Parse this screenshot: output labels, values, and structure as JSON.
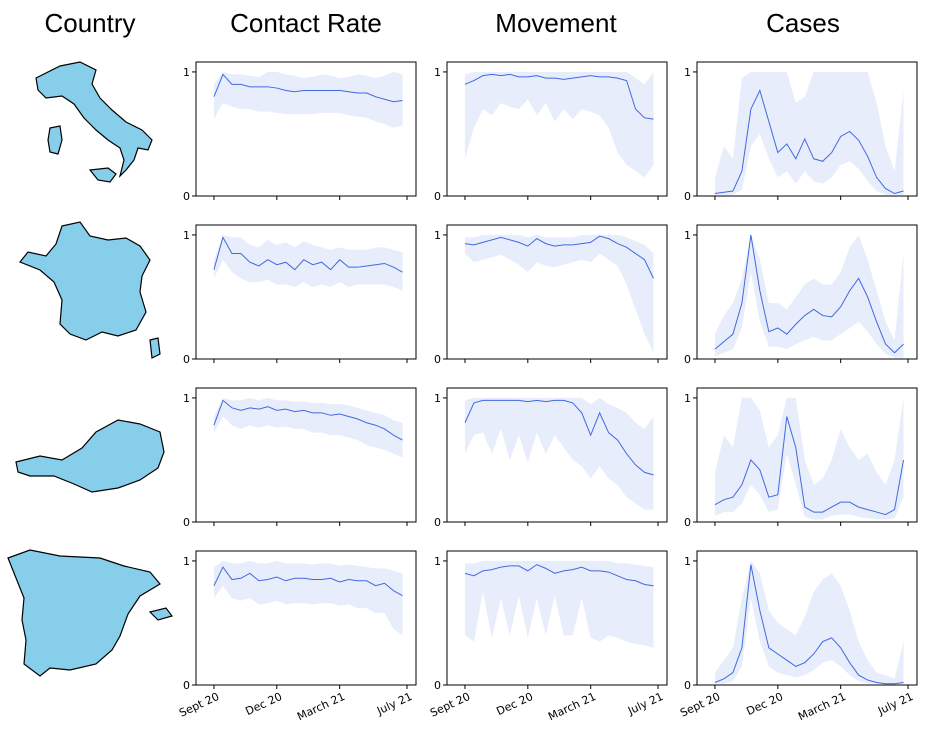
{
  "headers": [
    "Country",
    "Contact Rate",
    "Movement",
    "Cases"
  ],
  "chart_data": [
    {
      "type": "line",
      "x": [
        0,
        2,
        4,
        6,
        8,
        10,
        12,
        14,
        16,
        18,
        20,
        22,
        24,
        26,
        28,
        30,
        32,
        34,
        36,
        38,
        40,
        42
      ],
      "xlim": [
        -4,
        45
      ],
      "xticks": [
        0,
        14,
        28,
        43
      ],
      "ylim": [
        0,
        1.08
      ],
      "yticks": [
        0,
        1
      ],
      "color": "#4169e1",
      "band_color": "#e8edfb",
      "values": [
        0.8,
        0.98,
        0.9,
        0.9,
        0.88,
        0.88,
        0.88,
        0.87,
        0.85,
        0.84,
        0.85,
        0.85,
        0.85,
        0.85,
        0.85,
        0.84,
        0.83,
        0.83,
        0.8,
        0.78,
        0.76,
        0.77
      ],
      "lower": [
        0.62,
        0.75,
        0.72,
        0.7,
        0.7,
        0.68,
        0.68,
        0.67,
        0.66,
        0.66,
        0.66,
        0.66,
        0.67,
        0.67,
        0.67,
        0.65,
        0.64,
        0.63,
        0.6,
        0.58,
        0.55,
        0.57
      ],
      "upper": [
        0.9,
        1.0,
        0.98,
        0.98,
        0.97,
        0.96,
        1.0,
        1.0,
        0.98,
        0.97,
        0.95,
        0.96,
        0.98,
        0.97,
        0.95,
        0.96,
        0.98,
        0.97,
        0.95,
        0.97,
        1.0,
        0.98
      ]
    },
    {
      "type": "line",
      "x": [
        0,
        2,
        4,
        6,
        8,
        10,
        12,
        14,
        16,
        18,
        20,
        22,
        24,
        26,
        28,
        30,
        32,
        34,
        36,
        38,
        40,
        42
      ],
      "xlim": [
        -4,
        45
      ],
      "xticks": [
        0,
        14,
        28,
        43
      ],
      "ylim": [
        0,
        1.08
      ],
      "yticks": [
        0,
        1
      ],
      "color": "#4169e1",
      "band_color": "#e8edfb",
      "values": [
        0.9,
        0.93,
        0.97,
        0.98,
        0.97,
        0.98,
        0.96,
        0.96,
        0.97,
        0.95,
        0.95,
        0.94,
        0.95,
        0.96,
        0.97,
        0.96,
        0.96,
        0.95,
        0.93,
        0.7,
        0.63,
        0.62
      ],
      "lower": [
        0.3,
        0.55,
        0.7,
        0.65,
        0.75,
        0.72,
        0.7,
        0.78,
        0.65,
        0.75,
        0.6,
        0.7,
        0.62,
        0.7,
        0.68,
        0.65,
        0.55,
        0.35,
        0.25,
        0.2,
        0.15,
        0.25
      ],
      "upper": [
        0.98,
        1.0,
        1.0,
        1.0,
        1.0,
        1.0,
        1.0,
        1.0,
        1.0,
        1.0,
        1.0,
        1.0,
        1.0,
        1.0,
        1.0,
        1.0,
        1.0,
        1.0,
        1.0,
        0.95,
        0.9,
        1.0
      ]
    },
    {
      "type": "line",
      "x": [
        0,
        2,
        4,
        6,
        8,
        10,
        12,
        14,
        16,
        18,
        20,
        22,
        24,
        26,
        28,
        30,
        32,
        34,
        36,
        38,
        40,
        42
      ],
      "xlim": [
        -4,
        45
      ],
      "xticks": [
        0,
        14,
        28,
        43
      ],
      "ylim": [
        0,
        1.08
      ],
      "yticks": [
        0,
        1
      ],
      "color": "#4169e1",
      "band_color": "#e8edfb",
      "values": [
        0.02,
        0.03,
        0.04,
        0.2,
        0.7,
        0.85,
        0.6,
        0.35,
        0.42,
        0.3,
        0.46,
        0.3,
        0.28,
        0.35,
        0.48,
        0.52,
        0.45,
        0.32,
        0.15,
        0.06,
        0.02,
        0.04
      ],
      "lower": [
        0.01,
        0.01,
        0.01,
        0.05,
        0.4,
        0.5,
        0.3,
        0.15,
        0.2,
        0.1,
        0.2,
        0.12,
        0.1,
        0.15,
        0.25,
        0.28,
        0.22,
        0.12,
        0.04,
        0.01,
        0.01,
        0.01
      ],
      "upper": [
        0.15,
        0.4,
        0.3,
        0.95,
        1.0,
        1.0,
        1.0,
        1.0,
        1.0,
        0.75,
        0.8,
        1.0,
        1.0,
        1.0,
        1.0,
        1.0,
        1.0,
        1.0,
        0.75,
        0.4,
        0.2,
        0.85
      ]
    },
    {
      "type": "line",
      "x": [
        0,
        2,
        4,
        6,
        8,
        10,
        12,
        14,
        16,
        18,
        20,
        22,
        24,
        26,
        28,
        30,
        32,
        34,
        36,
        38,
        40,
        42
      ],
      "xlim": [
        -4,
        45
      ],
      "xticks": [
        0,
        14,
        28,
        43
      ],
      "ylim": [
        0,
        1.08
      ],
      "yticks": [
        0,
        1
      ],
      "color": "#4169e1",
      "band_color": "#e8edfb",
      "values": [
        0.72,
        0.98,
        0.85,
        0.85,
        0.78,
        0.75,
        0.8,
        0.76,
        0.78,
        0.72,
        0.8,
        0.76,
        0.78,
        0.72,
        0.8,
        0.74,
        0.74,
        0.75,
        0.76,
        0.77,
        0.74,
        0.7
      ],
      "lower": [
        0.65,
        0.8,
        0.7,
        0.65,
        0.62,
        0.62,
        0.64,
        0.6,
        0.6,
        0.58,
        0.62,
        0.58,
        0.6,
        0.58,
        0.62,
        0.58,
        0.6,
        0.6,
        0.6,
        0.6,
        0.58,
        0.55
      ],
      "upper": [
        0.8,
        1.0,
        0.98,
        0.98,
        0.92,
        0.9,
        0.96,
        0.92,
        0.94,
        0.9,
        0.95,
        0.92,
        0.9,
        0.88,
        0.9,
        0.88,
        0.88,
        0.88,
        0.9,
        0.9,
        0.88,
        0.86
      ]
    },
    {
      "type": "line",
      "x": [
        0,
        2,
        4,
        6,
        8,
        10,
        12,
        14,
        16,
        18,
        20,
        22,
        24,
        26,
        28,
        30,
        32,
        34,
        36,
        38,
        40,
        42
      ],
      "xlim": [
        -4,
        45
      ],
      "xticks": [
        0,
        14,
        28,
        43
      ],
      "ylim": [
        0,
        1.08
      ],
      "yticks": [
        0,
        1
      ],
      "color": "#4169e1",
      "band_color": "#e8edfb",
      "values": [
        0.93,
        0.92,
        0.94,
        0.96,
        0.98,
        0.96,
        0.94,
        0.91,
        0.97,
        0.93,
        0.91,
        0.92,
        0.92,
        0.93,
        0.94,
        0.99,
        0.97,
        0.93,
        0.9,
        0.85,
        0.8,
        0.65
      ],
      "lower": [
        0.85,
        0.78,
        0.8,
        0.82,
        0.84,
        0.8,
        0.76,
        0.7,
        0.78,
        0.75,
        0.74,
        0.76,
        0.78,
        0.8,
        0.78,
        0.85,
        0.8,
        0.75,
        0.6,
        0.4,
        0.2,
        0.05
      ],
      "upper": [
        0.98,
        0.98,
        1.0,
        1.0,
        1.0,
        1.0,
        1.0,
        0.98,
        1.0,
        0.98,
        0.98,
        0.98,
        0.98,
        1.0,
        1.0,
        1.0,
        1.0,
        1.0,
        0.98,
        0.95,
        0.92,
        0.85
      ]
    },
    {
      "type": "line",
      "x": [
        0,
        2,
        4,
        6,
        8,
        10,
        12,
        14,
        16,
        18,
        20,
        22,
        24,
        26,
        28,
        30,
        32,
        34,
        36,
        38,
        40,
        42
      ],
      "xlim": [
        -4,
        45
      ],
      "xticks": [
        0,
        14,
        28,
        43
      ],
      "ylim": [
        0,
        1.08
      ],
      "yticks": [
        0,
        1
      ],
      "color": "#4169e1",
      "band_color": "#e8edfb",
      "values": [
        0.08,
        0.14,
        0.2,
        0.45,
        1.0,
        0.55,
        0.22,
        0.25,
        0.2,
        0.28,
        0.35,
        0.4,
        0.35,
        0.34,
        0.42,
        0.55,
        0.65,
        0.5,
        0.3,
        0.12,
        0.05,
        0.12
      ],
      "lower": [
        0.02,
        0.05,
        0.08,
        0.25,
        0.7,
        0.3,
        0.1,
        0.1,
        0.08,
        0.12,
        0.15,
        0.18,
        0.15,
        0.15,
        0.2,
        0.25,
        0.3,
        0.22,
        0.12,
        0.04,
        0.01,
        0.01
      ],
      "upper": [
        0.2,
        0.35,
        0.45,
        0.65,
        1.0,
        0.8,
        0.45,
        0.45,
        0.4,
        0.5,
        0.6,
        0.65,
        0.6,
        0.6,
        0.7,
        0.9,
        1.0,
        0.8,
        0.55,
        0.3,
        0.15,
        0.85
      ]
    },
    {
      "type": "line",
      "x": [
        0,
        2,
        4,
        6,
        8,
        10,
        12,
        14,
        16,
        18,
        20,
        22,
        24,
        26,
        28,
        30,
        32,
        34,
        36,
        38,
        40,
        42
      ],
      "xlim": [
        -4,
        45
      ],
      "xticks": [
        0,
        14,
        28,
        43
      ],
      "ylim": [
        0,
        1.08
      ],
      "yticks": [
        0,
        1
      ],
      "color": "#4169e1",
      "band_color": "#e8edfb",
      "values": [
        0.78,
        0.98,
        0.92,
        0.9,
        0.92,
        0.91,
        0.93,
        0.9,
        0.91,
        0.89,
        0.9,
        0.88,
        0.88,
        0.86,
        0.87,
        0.85,
        0.83,
        0.8,
        0.78,
        0.75,
        0.7,
        0.66
      ],
      "lower": [
        0.72,
        0.85,
        0.78,
        0.75,
        0.78,
        0.76,
        0.78,
        0.76,
        0.77,
        0.75,
        0.75,
        0.72,
        0.72,
        0.7,
        0.7,
        0.68,
        0.66,
        0.62,
        0.6,
        0.58,
        0.55,
        0.52
      ],
      "upper": [
        0.85,
        1.0,
        0.98,
        0.98,
        1.0,
        0.98,
        1.0,
        0.98,
        0.98,
        0.97,
        0.97,
        0.96,
        0.96,
        0.95,
        0.95,
        0.94,
        0.92,
        0.9,
        0.88,
        0.86,
        0.82,
        0.8
      ]
    },
    {
      "type": "line",
      "x": [
        0,
        2,
        4,
        6,
        8,
        10,
        12,
        14,
        16,
        18,
        20,
        22,
        24,
        26,
        28,
        30,
        32,
        34,
        36,
        38,
        40,
        42
      ],
      "xlim": [
        -4,
        45
      ],
      "xticks": [
        0,
        14,
        28,
        43
      ],
      "ylim": [
        0,
        1.08
      ],
      "yticks": [
        0,
        1
      ],
      "color": "#4169e1",
      "band_color": "#e8edfb",
      "values": [
        0.8,
        0.96,
        0.98,
        0.98,
        0.98,
        0.98,
        0.98,
        0.97,
        0.98,
        0.97,
        0.98,
        0.98,
        0.96,
        0.88,
        0.7,
        0.88,
        0.72,
        0.66,
        0.55,
        0.46,
        0.4,
        0.38
      ],
      "lower": [
        0.55,
        0.7,
        0.72,
        0.55,
        0.75,
        0.5,
        0.7,
        0.48,
        0.72,
        0.55,
        0.7,
        0.6,
        0.5,
        0.45,
        0.35,
        0.45,
        0.35,
        0.3,
        0.2,
        0.15,
        0.1,
        0.1
      ],
      "upper": [
        0.98,
        1.0,
        1.0,
        1.0,
        1.0,
        1.0,
        1.0,
        1.0,
        1.0,
        1.0,
        1.0,
        1.0,
        1.0,
        1.0,
        0.95,
        1.0,
        0.95,
        0.92,
        0.88,
        0.8,
        0.75,
        0.85
      ]
    },
    {
      "type": "line",
      "x": [
        0,
        2,
        4,
        6,
        8,
        10,
        12,
        14,
        16,
        18,
        20,
        22,
        24,
        26,
        28,
        30,
        32,
        34,
        36,
        38,
        40,
        42
      ],
      "xlim": [
        -4,
        45
      ],
      "xticks": [
        0,
        14,
        28,
        43
      ],
      "ylim": [
        0,
        1.08
      ],
      "yticks": [
        0,
        1
      ],
      "color": "#4169e1",
      "band_color": "#e8edfb",
      "values": [
        0.14,
        0.18,
        0.2,
        0.3,
        0.5,
        0.42,
        0.2,
        0.22,
        0.85,
        0.6,
        0.12,
        0.08,
        0.08,
        0.12,
        0.16,
        0.16,
        0.12,
        0.1,
        0.08,
        0.06,
        0.1,
        0.5
      ],
      "lower": [
        0.05,
        0.08,
        0.08,
        0.15,
        0.3,
        0.22,
        0.08,
        0.1,
        0.55,
        0.3,
        0.04,
        0.02,
        0.02,
        0.05,
        0.06,
        0.06,
        0.04,
        0.03,
        0.02,
        0.02,
        0.03,
        0.2
      ],
      "upper": [
        0.4,
        0.7,
        0.6,
        1.0,
        1.0,
        0.9,
        0.6,
        0.7,
        1.0,
        1.0,
        0.5,
        0.3,
        0.35,
        0.5,
        0.75,
        0.6,
        0.5,
        0.55,
        0.4,
        0.3,
        0.5,
        1.0
      ]
    },
    {
      "type": "line",
      "x": [
        0,
        2,
        4,
        6,
        8,
        10,
        12,
        14,
        16,
        18,
        20,
        22,
        24,
        26,
        28,
        30,
        32,
        34,
        36,
        38,
        40,
        42
      ],
      "xlim": [
        -4,
        45
      ],
      "xticks": [
        {
          "value": 0,
          "label": "Sept 20"
        },
        {
          "value": 14,
          "label": "Dec 20"
        },
        {
          "value": 28,
          "label": "March 21"
        },
        {
          "value": 43,
          "label": "July 21"
        }
      ],
      "ylim": [
        0,
        1.08
      ],
      "yticks": [
        0,
        1
      ],
      "color": "#4169e1",
      "band_color": "#e8edfb",
      "values": [
        0.8,
        0.95,
        0.85,
        0.86,
        0.9,
        0.84,
        0.85,
        0.87,
        0.84,
        0.86,
        0.86,
        0.85,
        0.85,
        0.86,
        0.83,
        0.85,
        0.84,
        0.84,
        0.8,
        0.82,
        0.76,
        0.72
      ],
      "lower": [
        0.7,
        0.8,
        0.7,
        0.68,
        0.7,
        0.65,
        0.66,
        0.68,
        0.65,
        0.66,
        0.66,
        0.65,
        0.66,
        0.66,
        0.64,
        0.65,
        0.62,
        0.62,
        0.58,
        0.58,
        0.45,
        0.4
      ],
      "upper": [
        0.95,
        1.0,
        0.98,
        0.98,
        1.0,
        0.98,
        0.98,
        1.0,
        0.98,
        0.98,
        0.98,
        0.97,
        0.98,
        0.98,
        0.96,
        0.97,
        0.96,
        0.95,
        0.94,
        0.94,
        0.92,
        0.9
      ]
    },
    {
      "type": "line",
      "x": [
        0,
        2,
        4,
        6,
        8,
        10,
        12,
        14,
        16,
        18,
        20,
        22,
        24,
        26,
        28,
        30,
        32,
        34,
        36,
        38,
        40,
        42
      ],
      "xlim": [
        -4,
        45
      ],
      "xticks": [
        {
          "value": 0,
          "label": "Sept 20"
        },
        {
          "value": 14,
          "label": "Dec 20"
        },
        {
          "value": 28,
          "label": "March 21"
        },
        {
          "value": 43,
          "label": "July 21"
        }
      ],
      "ylim": [
        0,
        1.08
      ],
      "yticks": [
        0,
        1
      ],
      "color": "#4169e1",
      "band_color": "#e8edfb",
      "values": [
        0.9,
        0.88,
        0.92,
        0.93,
        0.95,
        0.96,
        0.96,
        0.92,
        0.97,
        0.94,
        0.9,
        0.92,
        0.93,
        0.95,
        0.92,
        0.92,
        0.91,
        0.88,
        0.85,
        0.84,
        0.81,
        0.8
      ],
      "lower": [
        0.4,
        0.35,
        0.75,
        0.38,
        0.7,
        0.4,
        0.72,
        0.38,
        0.7,
        0.4,
        0.72,
        0.4,
        0.4,
        0.7,
        0.38,
        0.35,
        0.4,
        0.38,
        0.35,
        0.33,
        0.32,
        0.3
      ],
      "upper": [
        0.98,
        0.98,
        1.0,
        1.0,
        1.0,
        1.0,
        1.0,
        1.0,
        1.0,
        1.0,
        1.0,
        1.0,
        1.0,
        1.0,
        1.0,
        1.0,
        1.0,
        0.98,
        0.98,
        0.97,
        0.96,
        0.95
      ]
    },
    {
      "type": "line",
      "x": [
        0,
        2,
        4,
        6,
        8,
        10,
        12,
        14,
        16,
        18,
        20,
        22,
        24,
        26,
        28,
        30,
        32,
        34,
        36,
        38,
        40,
        42
      ],
      "xlim": [
        -4,
        45
      ],
      "xticks": [
        {
          "value": 0,
          "label": "Sept 20"
        },
        {
          "value": 14,
          "label": "Dec 20"
        },
        {
          "value": 28,
          "label": "March 21"
        },
        {
          "value": 43,
          "label": "July 21"
        }
      ],
      "ylim": [
        0,
        1.08
      ],
      "yticks": [
        0,
        1
      ],
      "color": "#4169e1",
      "band_color": "#e8edfb",
      "values": [
        0.02,
        0.05,
        0.1,
        0.3,
        0.97,
        0.6,
        0.3,
        0.25,
        0.2,
        0.15,
        0.18,
        0.25,
        0.35,
        0.38,
        0.3,
        0.18,
        0.08,
        0.04,
        0.02,
        0.01,
        0.01,
        0.02
      ],
      "lower": [
        0.01,
        0.01,
        0.03,
        0.15,
        0.7,
        0.35,
        0.15,
        0.1,
        0.08,
        0.06,
        0.08,
        0.12,
        0.18,
        0.2,
        0.15,
        0.08,
        0.03,
        0.01,
        0.01,
        0.01,
        0.01,
        0.01
      ],
      "upper": [
        0.1,
        0.2,
        0.3,
        0.7,
        1.0,
        0.9,
        0.6,
        0.5,
        0.45,
        0.4,
        0.55,
        0.75,
        0.85,
        0.9,
        0.8,
        0.6,
        0.35,
        0.2,
        0.1,
        0.08,
        0.05,
        0.35
      ]
    }
  ]
}
